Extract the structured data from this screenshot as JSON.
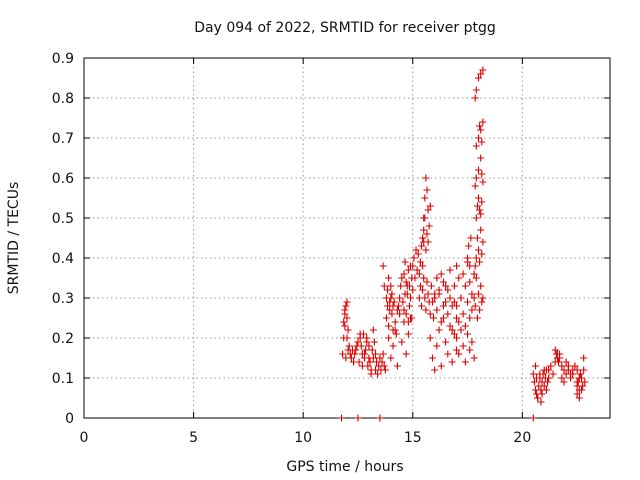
{
  "chart_data": {
    "type": "scatter",
    "title": "Day 094 of 2022, SRMTID for receiver ptgg",
    "xlabel": "GPS time / hours",
    "ylabel": "SRMTID / TECUs",
    "xlim": [
      0,
      24
    ],
    "ylim": [
      0,
      0.9
    ],
    "xticks": [
      0,
      5,
      10,
      15,
      20
    ],
    "xtick_labels": [
      "0",
      "5",
      "10",
      "15",
      "20"
    ],
    "yticks": [
      0,
      0.1,
      0.2,
      0.3,
      0.4,
      0.5,
      0.6,
      0.7,
      0.8,
      0.9
    ],
    "ytick_labels": [
      "0",
      "0.1",
      "0.2",
      "0.3",
      "0.4",
      "0.5",
      "0.6",
      "0.7",
      "0.8",
      "0.9"
    ],
    "grid": true,
    "marker": "+",
    "series_color": "#dd0000",
    "series": [
      {
        "name": "SRMTID",
        "x": [
          11.75,
          12.5,
          13.5,
          20.5,
          11.8,
          11.85,
          11.9,
          11.95,
          12.0,
          12.05,
          12.1,
          12.15,
          12.2,
          12.25,
          12.3,
          11.85,
          11.9,
          11.95,
          12.0,
          12.05,
          12.0,
          11.9,
          12.35,
          12.4,
          12.45,
          12.55,
          12.6,
          12.65,
          12.7,
          12.75,
          12.8,
          12.85,
          12.9,
          12.95,
          13.0,
          13.05,
          13.1,
          13.15,
          13.2,
          13.25,
          12.5,
          12.6,
          12.7,
          12.8,
          12.9,
          13.0,
          13.1,
          13.2,
          13.3,
          13.3,
          13.35,
          13.4,
          13.45,
          13.5,
          13.55,
          13.6,
          13.65,
          13.7,
          13.75,
          13.8,
          13.85,
          13.9,
          13.95,
          14.0,
          14.05,
          14.1,
          14.15,
          14.2,
          14.25,
          14.3,
          13.65,
          13.7,
          13.8,
          13.85,
          13.9,
          13.95,
          14.0,
          14.05,
          14.1,
          13.9,
          14.0,
          14.1,
          14.2,
          14.3,
          14.4,
          14.5,
          14.6,
          14.7,
          14.8,
          14.9,
          14.35,
          14.4,
          14.45,
          14.5,
          14.55,
          14.6,
          14.65,
          14.7,
          14.75,
          14.8,
          14.85,
          14.9,
          14.95,
          14.6,
          14.65,
          14.7,
          14.75,
          14.8,
          14.85,
          14.9,
          14.95,
          15.0,
          15.0,
          15.05,
          15.1,
          15.15,
          15.2,
          15.25,
          15.3,
          15.35,
          15.4,
          15.45,
          15.5,
          15.5,
          15.55,
          15.6,
          15.65,
          15.7,
          15.75,
          15.8,
          15.45,
          15.5,
          15.55,
          15.6,
          15.65,
          15.7,
          15.3,
          15.35,
          15.4,
          15.45,
          15.5,
          15.55,
          15.6,
          15.65,
          15.7,
          15.75,
          15.8,
          15.85,
          15.9,
          15.95,
          16.0,
          15.8,
          15.9,
          16.0,
          16.1,
          16.2,
          16.3,
          16.4,
          16.5,
          16.6,
          16.7,
          16.8,
          16.9,
          17.0,
          16.0,
          16.1,
          16.2,
          16.3,
          16.4,
          16.5,
          16.6,
          16.7,
          16.8,
          16.9,
          17.0,
          16.1,
          16.2,
          16.3,
          16.4,
          16.5,
          16.6,
          16.7,
          16.8,
          16.9,
          17.0,
          17.1,
          17.2,
          17.3,
          17.4,
          17.5,
          17.6,
          17.7,
          17.8,
          17.0,
          17.1,
          17.2,
          17.3,
          17.4,
          17.5,
          17.6,
          17.7,
          17.0,
          17.1,
          17.2,
          17.3,
          17.4,
          17.5,
          17.6,
          17.7,
          17.8,
          17.5,
          17.55,
          17.6,
          17.65,
          17.8,
          17.85,
          17.9,
          17.95,
          18.0,
          18.05,
          18.1,
          18.15,
          18.2,
          17.85,
          17.9,
          17.95,
          18.0,
          18.05,
          18.1,
          18.15,
          18.2,
          17.9,
          17.95,
          18.0,
          18.05,
          18.1,
          18.15,
          17.85,
          17.9,
          18.0,
          18.1,
          18.15,
          18.2,
          17.9,
          18.0,
          18.05,
          18.1,
          18.15,
          18.2,
          17.85,
          17.9,
          18.0,
          18.1,
          18.2,
          20.5,
          20.55,
          20.6,
          20.65,
          20.7,
          20.75,
          20.8,
          20.85,
          20.9,
          20.95,
          21.0,
          21.05,
          21.1,
          21.15,
          21.2,
          20.6,
          20.7,
          20.8,
          20.9,
          21.0,
          21.1,
          20.65,
          20.85,
          21.2,
          21.3,
          21.4,
          21.5,
          21.6,
          21.7,
          21.8,
          21.9,
          22.0,
          22.1,
          22.2,
          22.3,
          22.4,
          22.5,
          22.6,
          21.5,
          21.55,
          21.6,
          21.65,
          21.7,
          21.8,
          21.9,
          22.0,
          22.1,
          22.2,
          22.3,
          22.4,
          22.5,
          22.5,
          22.55,
          22.6,
          22.65,
          22.7,
          22.75,
          22.8,
          22.85,
          22.5,
          22.6,
          22.7,
          22.8
        ],
        "y": [
          0,
          0,
          0,
          0,
          0.16,
          0.2,
          0.26,
          0.28,
          0.29,
          0.22,
          0.18,
          0.16,
          0.15,
          0.17,
          0.14,
          0.24,
          0.27,
          0.15,
          0.2,
          0.17,
          0.25,
          0.23,
          0.16,
          0.17,
          0.18,
          0.14,
          0.2,
          0.18,
          0.16,
          0.21,
          0.15,
          0.17,
          0.19,
          0.13,
          0.18,
          0.14,
          0.12,
          0.17,
          0.15,
          0.19,
          0.19,
          0.21,
          0.13,
          0.16,
          0.2,
          0.15,
          0.11,
          0.22,
          0.16,
          0.12,
          0.14,
          0.11,
          0.13,
          0.15,
          0.12,
          0.14,
          0.16,
          0.13,
          0.12,
          0.25,
          0.28,
          0.23,
          0.27,
          0.3,
          0.26,
          0.22,
          0.29,
          0.24,
          0.21,
          0.27,
          0.38,
          0.33,
          0.3,
          0.32,
          0.35,
          0.29,
          0.33,
          0.31,
          0.28,
          0.2,
          0.15,
          0.18,
          0.22,
          0.13,
          0.26,
          0.19,
          0.24,
          0.16,
          0.21,
          0.25,
          0.28,
          0.3,
          0.33,
          0.35,
          0.29,
          0.27,
          0.31,
          0.26,
          0.33,
          0.24,
          0.28,
          0.3,
          0.25,
          0.36,
          0.39,
          0.34,
          0.31,
          0.37,
          0.33,
          0.38,
          0.35,
          0.32,
          0.38,
          0.4,
          0.35,
          0.42,
          0.37,
          0.41,
          0.36,
          0.39,
          0.43,
          0.38,
          0.44,
          0.5,
          0.55,
          0.6,
          0.57,
          0.52,
          0.48,
          0.53,
          0.45,
          0.47,
          0.5,
          0.42,
          0.46,
          0.44,
          0.3,
          0.33,
          0.28,
          0.32,
          0.35,
          0.3,
          0.27,
          0.34,
          0.31,
          0.29,
          0.26,
          0.33,
          0.29,
          0.25,
          0.31,
          0.2,
          0.15,
          0.12,
          0.18,
          0.22,
          0.13,
          0.25,
          0.19,
          0.16,
          0.23,
          0.14,
          0.21,
          0.17,
          0.3,
          0.27,
          0.32,
          0.24,
          0.28,
          0.33,
          0.26,
          0.3,
          0.22,
          0.29,
          0.25,
          0.35,
          0.31,
          0.36,
          0.34,
          0.29,
          0.32,
          0.37,
          0.28,
          0.33,
          0.38,
          0.35,
          0.3,
          0.36,
          0.33,
          0.39,
          0.34,
          0.31,
          0.36,
          0.28,
          0.24,
          0.3,
          0.26,
          0.23,
          0.29,
          0.25,
          0.27,
          0.2,
          0.16,
          0.22,
          0.18,
          0.14,
          0.21,
          0.17,
          0.19,
          0.15,
          0.4,
          0.43,
          0.38,
          0.45,
          0.3,
          0.28,
          0.35,
          0.25,
          0.31,
          0.27,
          0.33,
          0.29,
          0.3,
          0.38,
          0.4,
          0.45,
          0.42,
          0.39,
          0.47,
          0.41,
          0.44,
          0.5,
          0.53,
          0.55,
          0.52,
          0.51,
          0.54,
          0.58,
          0.6,
          0.62,
          0.65,
          0.61,
          0.59,
          0.68,
          0.7,
          0.73,
          0.72,
          0.69,
          0.74,
          0.8,
          0.82,
          0.85,
          0.86,
          0.87,
          0.11,
          0.09,
          0.07,
          0.06,
          0.05,
          0.08,
          0.1,
          0.07,
          0.09,
          0.11,
          0.08,
          0.1,
          0.12,
          0.09,
          0.1,
          0.13,
          0.05,
          0.11,
          0.06,
          0.12,
          0.07,
          0.1,
          0.04,
          0.12,
          0.13,
          0.11,
          0.14,
          0.16,
          0.15,
          0.13,
          0.12,
          0.14,
          0.13,
          0.11,
          0.12,
          0.13,
          0.12,
          0.1,
          0.17,
          0.16,
          0.15,
          0.14,
          0.16,
          0.1,
          0.09,
          0.11,
          0.12,
          0.1,
          0.11,
          0.13,
          0.09,
          0.08,
          0.09,
          0.07,
          0.11,
          0.1,
          0.08,
          0.12,
          0.09,
          0.06,
          0.05,
          0.07,
          0.15
        ]
      }
    ]
  }
}
